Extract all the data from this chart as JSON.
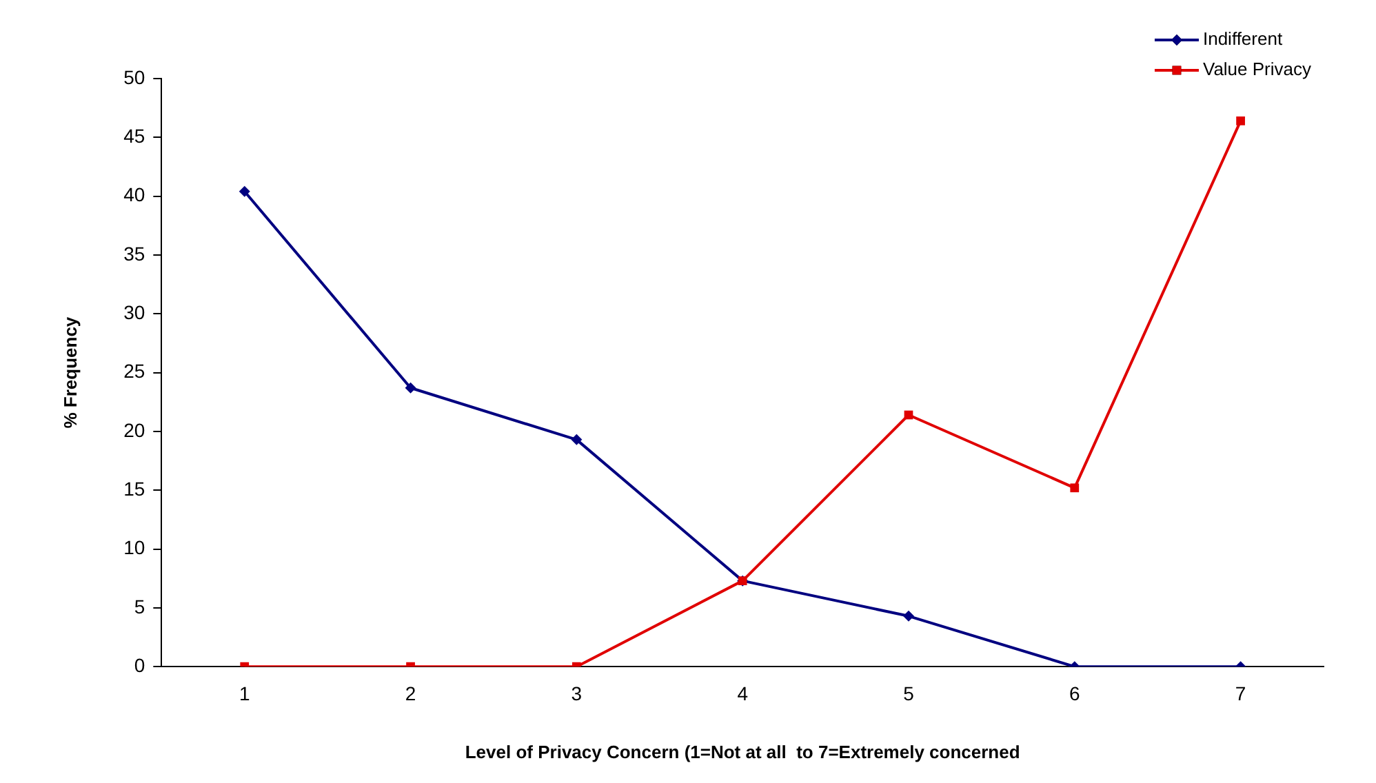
{
  "chart_data": {
    "type": "line",
    "xlabel": "Level of Privacy Concern (1=Not at all  to 7=Extremely concerned",
    "ylabel": "% Frequency",
    "categories": [
      "1",
      "2",
      "3",
      "4",
      "5",
      "6",
      "7"
    ],
    "series": [
      {
        "name": "Indifferent",
        "color": "#000080",
        "marker": "diamond",
        "values": [
          40.4,
          23.7,
          19.3,
          7.3,
          4.3,
          0,
          0
        ]
      },
      {
        "name": "Value Privacy",
        "color": "#e00000",
        "marker": "square",
        "values": [
          0,
          0,
          0,
          7.3,
          21.4,
          15.2,
          46.4
        ]
      }
    ],
    "ylim": [
      0,
      50
    ],
    "yticks": [
      0,
      5,
      10,
      15,
      20,
      25,
      30,
      35,
      40,
      45,
      50
    ],
    "grid": false,
    "legend": "top right",
    "line_style": "solid"
  }
}
